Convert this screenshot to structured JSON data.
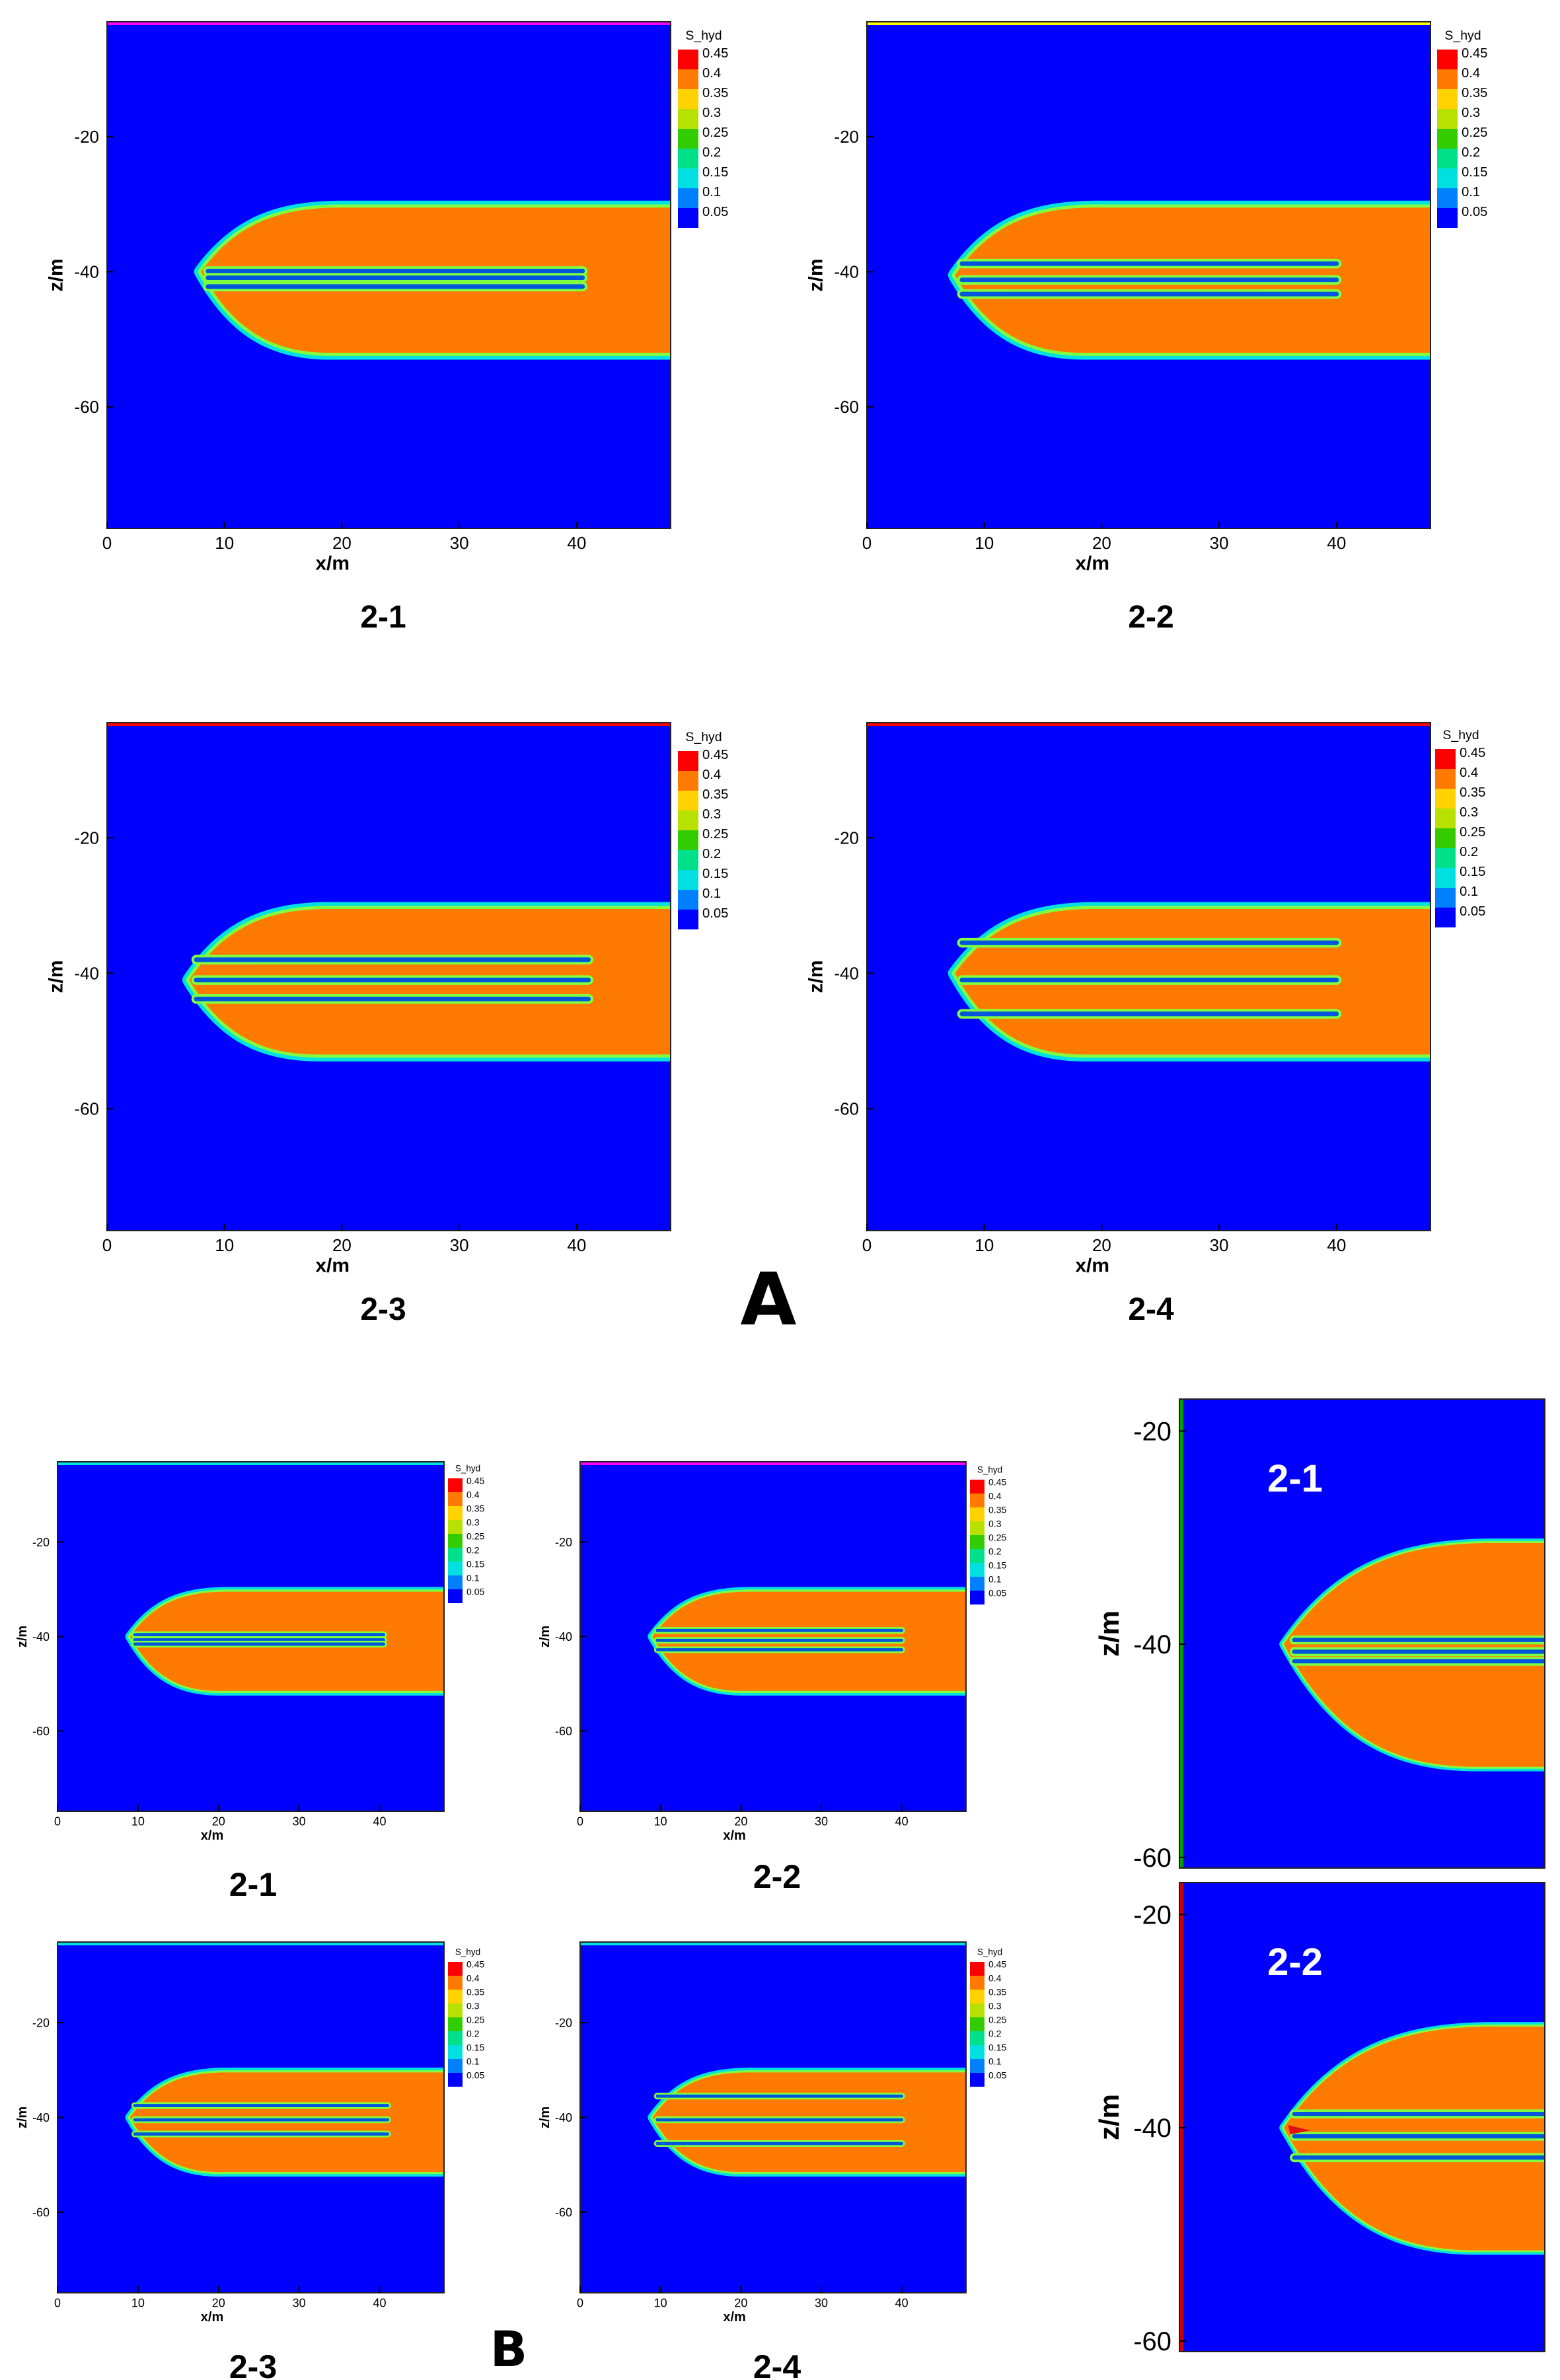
{
  "figure": {
    "group_labels": [
      "A",
      "B"
    ],
    "colorbar_title": "S_hyd",
    "colorbar_levels": [
      "0.45",
      "0.4",
      "0.35",
      "0.3",
      "0.25",
      "0.2",
      "0.15",
      "0.1",
      "0.05"
    ],
    "colorbar_colors": [
      "#ff0000",
      "#ff7a00",
      "#ffd200",
      "#b8e000",
      "#33cc00",
      "#00e08a",
      "#00e0e0",
      "#0080ff",
      "#0000ff"
    ],
    "colors": {
      "background": "#0000ff",
      "hydrate": "#ff7a00",
      "edge": "#00e0e0",
      "edge2": "#80ff40",
      "stripe": "#0055dd"
    }
  },
  "chart_data": [
    {
      "type": "heatmap",
      "group": "A",
      "label": "2-1",
      "xlabel": "x/m",
      "ylabel": "z/m",
      "xlim": [
        0,
        48
      ],
      "ylim": [
        -78,
        -3
      ],
      "xticks": [
        "0",
        "10",
        "20",
        "30",
        "40"
      ],
      "yticks": [
        "-20",
        "-40",
        "-60"
      ],
      "colorbar": true,
      "top_line_color": "#ff00ff",
      "zone": {
        "tip_x": 8,
        "tip_z": -40,
        "top_z": -30.5,
        "bottom_z": -52,
        "x_end": 48
      },
      "wells": [
        {
          "z": -39.9,
          "x_end": 40.5
        },
        {
          "z": -40.9,
          "x_end": 40.5
        },
        {
          "z": -42.2,
          "x_end": 40.5
        }
      ]
    },
    {
      "type": "heatmap",
      "group": "A",
      "label": "2-2",
      "xlabel": "x/m",
      "ylabel": "z/m",
      "xlim": [
        0,
        48
      ],
      "ylim": [
        -78,
        -3
      ],
      "xticks": [
        "0",
        "10",
        "20",
        "30",
        "40"
      ],
      "yticks": [
        "-20",
        "-40",
        "-60"
      ],
      "colorbar": true,
      "top_line_color": "#ffff00",
      "zone": {
        "tip_x": 7.5,
        "tip_z": -40.5,
        "top_z": -30.5,
        "bottom_z": -52,
        "x_end": 48
      },
      "wells": [
        {
          "z": -38.8,
          "x_end": 40
        },
        {
          "z": -41.2,
          "x_end": 40
        },
        {
          "z": -43.3,
          "x_end": 40
        }
      ]
    },
    {
      "type": "heatmap",
      "group": "A",
      "label": "2-3",
      "xlabel": "x/m",
      "ylabel": "z/m",
      "xlim": [
        0,
        48
      ],
      "ylim": [
        -78,
        -3
      ],
      "xticks": [
        "0",
        "10",
        "20",
        "30",
        "40"
      ],
      "yticks": [
        "-20",
        "-40",
        "-60"
      ],
      "colorbar": true,
      "top_line_color": "#ff0000",
      "zone": {
        "tip_x": 7,
        "tip_z": -41,
        "top_z": -30.5,
        "bottom_z": -52,
        "x_end": 48
      },
      "wells": [
        {
          "z": -38,
          "x_end": 41
        },
        {
          "z": -41,
          "x_end": 41
        },
        {
          "z": -43.8,
          "x_end": 41
        }
      ]
    },
    {
      "type": "heatmap",
      "group": "A",
      "label": "2-4",
      "xlabel": "x/m",
      "ylabel": "z/m",
      "xlim": [
        0,
        48
      ],
      "ylim": [
        -78,
        -3
      ],
      "xticks": [
        "0",
        "10",
        "20",
        "30",
        "40"
      ],
      "yticks": [
        "-20",
        "-40",
        "-60"
      ],
      "colorbar": true,
      "top_line_color": "#ff0000",
      "zone": {
        "tip_x": 7.5,
        "tip_z": -40,
        "top_z": -30.5,
        "bottom_z": -52,
        "x_end": 48
      },
      "wells": [
        {
          "z": -35.5,
          "x_end": 40
        },
        {
          "z": -41,
          "x_end": 40
        },
        {
          "z": -46,
          "x_end": 40
        }
      ]
    },
    {
      "type": "heatmap",
      "group": "B",
      "label": "2-1",
      "xlabel": "x/m",
      "ylabel": "z/m",
      "xlim": [
        0,
        48
      ],
      "ylim": [
        -77,
        -3
      ],
      "xticks": [
        "0",
        "10",
        "20",
        "30",
        "40"
      ],
      "yticks": [
        "-20",
        "-40",
        "-60"
      ],
      "colorbar": true,
      "top_line_color": "#00e0e0",
      "zone": {
        "tip_x": 9,
        "tip_z": -40,
        "top_z": -30.5,
        "bottom_z": -51.5,
        "x_end": 48
      },
      "wells": [
        {
          "z": -39.6,
          "x_end": 40.5
        },
        {
          "z": -40.7,
          "x_end": 40.5
        },
        {
          "z": -41.6,
          "x_end": 40.5
        }
      ]
    },
    {
      "type": "heatmap",
      "group": "B",
      "label": "2-2",
      "xlabel": "x/m",
      "ylabel": "z/m",
      "xlim": [
        0,
        48
      ],
      "ylim": [
        -77,
        -3
      ],
      "xticks": [
        "0",
        "10",
        "20",
        "30",
        "40"
      ],
      "yticks": [
        "-20",
        "-40",
        "-60"
      ],
      "colorbar": true,
      "top_line_color": "#ff00ff",
      "zone": {
        "tip_x": 9,
        "tip_z": -40,
        "top_z": -30.5,
        "bottom_z": -51.5,
        "x_end": 48
      },
      "wells": [
        {
          "z": -38.7,
          "x_end": 40
        },
        {
          "z": -40.8,
          "x_end": 40
        },
        {
          "z": -42.8,
          "x_end": 40
        }
      ]
    },
    {
      "type": "heatmap",
      "group": "B",
      "label": "2-3",
      "xlabel": "x/m",
      "ylabel": "z/m",
      "xlim": [
        0,
        48
      ],
      "ylim": [
        -77,
        -3
      ],
      "xticks": [
        "0",
        "10",
        "20",
        "30",
        "40"
      ],
      "yticks": [
        "-20",
        "-40",
        "-60"
      ],
      "colorbar": true,
      "top_line_color": "#00e0e0",
      "zone": {
        "tip_x": 9,
        "tip_z": -40,
        "top_z": -30.5,
        "bottom_z": -51.5,
        "x_end": 48
      },
      "wells": [
        {
          "z": -37.5,
          "x_end": 41
        },
        {
          "z": -40.5,
          "x_end": 41
        },
        {
          "z": -43.5,
          "x_end": 41
        }
      ]
    },
    {
      "type": "heatmap",
      "group": "B",
      "label": "2-4",
      "xlabel": "x/m",
      "ylabel": "z/m",
      "xlim": [
        0,
        48
      ],
      "ylim": [
        -77,
        -3
      ],
      "xticks": [
        "0",
        "10",
        "20",
        "30",
        "40"
      ],
      "yticks": [
        "-20",
        "-40",
        "-60"
      ],
      "colorbar": true,
      "top_line_color": "#00e0e0",
      "zone": {
        "tip_x": 9,
        "tip_z": -40,
        "top_z": -30.5,
        "bottom_z": -51.5,
        "x_end": 48
      },
      "wells": [
        {
          "z": -35.5,
          "x_end": 40
        },
        {
          "z": -40.5,
          "x_end": 40
        },
        {
          "z": -45.5,
          "x_end": 40
        }
      ]
    },
    {
      "type": "heatmap",
      "group": "zoom",
      "label": "2-1",
      "ylabel": "z/m",
      "xlim": [
        3,
        24
      ],
      "ylim": [
        -61,
        -17
      ],
      "yticks": [
        "-20",
        "-40",
        "-60"
      ],
      "colorbar": false,
      "inside_label": true,
      "left_line_color": "#00a000",
      "zone": {
        "tip_x": 9,
        "tip_z": -40,
        "top_z": -30.5,
        "bottom_z": -51.5,
        "x_end": 48
      },
      "wells": [
        {
          "z": -39.6,
          "x_end": 40.5
        },
        {
          "z": -40.7,
          "x_end": 40.5
        },
        {
          "z": -41.6,
          "x_end": 40.5
        }
      ]
    },
    {
      "type": "heatmap",
      "group": "zoom",
      "label": "2-2",
      "ylabel": "z/m",
      "xlim": [
        3,
        24
      ],
      "ylim": [
        -61,
        -17
      ],
      "yticks": [
        "-20",
        "-40",
        "-60"
      ],
      "colorbar": false,
      "inside_label": true,
      "left_line_color": "#cc0000",
      "red_tip": true,
      "zone": {
        "tip_x": 9,
        "tip_z": -40,
        "top_z": -30.5,
        "bottom_z": -51.5,
        "x_end": 48
      },
      "wells": [
        {
          "z": -38.7,
          "x_end": 40
        },
        {
          "z": -40.8,
          "x_end": 40
        },
        {
          "z": -42.8,
          "x_end": 40
        }
      ]
    }
  ]
}
